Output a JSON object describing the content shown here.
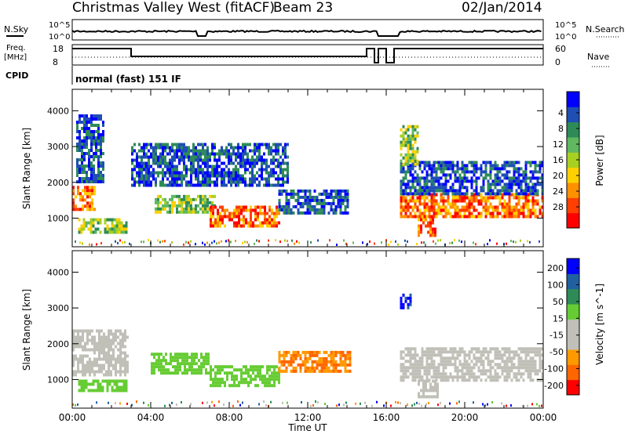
{
  "header": {
    "station": "Christmas Valley West (fitACF)",
    "beam": "Beam 23",
    "date": "02/Jan/2014"
  },
  "aux_labels": {
    "nsky": "N.Sky",
    "nsearch": "N.Search",
    "freq_line1": "Freq.",
    "freq_line2": "[MHz]",
    "nave": "Nave",
    "cpid": "CPID",
    "cpid_value": "normal (fast) 151 IF",
    "noise_ticks_left": [
      "10^5",
      "10^0"
    ],
    "noise_ticks_right": [
      "10^5",
      "10^0"
    ],
    "freq_ticks": [
      "18",
      "8"
    ],
    "nave_ticks": [
      "60",
      "0"
    ]
  },
  "colors": {
    "power_scale": [
      "#0000ff",
      "#1f4fb4",
      "#2e8b57",
      "#5fb85f",
      "#a8d020",
      "#ffd000",
      "#ff9000",
      "#ff4000",
      "#ff0000"
    ],
    "velocity_scale": [
      "#0000ff",
      "#2060a0",
      "#2e8b57",
      "#66cc33",
      "#c0c0b8",
      "#c0c0b8",
      "#ff9900",
      "#ff6600",
      "#ff0000"
    ],
    "ground_scatter": "#c0c0b8"
  },
  "chart_data": [
    {
      "type": "heatmap",
      "title": "",
      "xlabel": "Time UT",
      "ylabel": "Slant Range [km]",
      "xlim": [
        0,
        24
      ],
      "ylim": [
        200,
        4600
      ],
      "x_ticks": [
        "00:00",
        "04:00",
        "08:00",
        "12:00",
        "16:00",
        "20:00",
        "00:00"
      ],
      "y_ticks": [
        "1000",
        "2000",
        "3000",
        "4000"
      ],
      "colorbar": {
        "label": "Power [dB]",
        "ticks": [
          "4",
          "8",
          "12",
          "16",
          "20",
          "24",
          "28"
        ],
        "range": [
          0,
          30
        ]
      },
      "scatter_regions": [
        {
          "t": [
            0.0,
            1.1
          ],
          "r": [
            1250,
            1900
          ],
          "level": "high"
        },
        {
          "t": [
            0.3,
            2.8
          ],
          "r": [
            600,
            1000
          ],
          "level": "medium"
        },
        {
          "t": [
            0.2,
            1.6
          ],
          "r": [
            2000,
            3900
          ],
          "level": "low"
        },
        {
          "t": [
            4.2,
            7.3
          ],
          "r": [
            1200,
            1650
          ],
          "level": "medium"
        },
        {
          "t": [
            7.0,
            10.5
          ],
          "r": [
            800,
            1350
          ],
          "level": "high"
        },
        {
          "t": [
            10.5,
            14.0
          ],
          "r": [
            1150,
            1800
          ],
          "level": "low"
        },
        {
          "t": [
            3.0,
            11.0
          ],
          "r": [
            1900,
            3100
          ],
          "level": "low"
        },
        {
          "t": [
            16.7,
            24.0
          ],
          "r": [
            1000,
            1700
          ],
          "level": "high"
        },
        {
          "t": [
            17.6,
            18.5
          ],
          "r": [
            550,
            1000
          ],
          "level": "high"
        },
        {
          "t": [
            16.7,
            24.0
          ],
          "r": [
            1700,
            2600
          ],
          "level": "low"
        },
        {
          "t": [
            16.7,
            17.6
          ],
          "r": [
            2500,
            3600
          ],
          "level": "medium"
        }
      ]
    },
    {
      "type": "heatmap",
      "title": "",
      "xlabel": "Time UT",
      "ylabel": "Slant Range [km]",
      "xlim": [
        0,
        24
      ],
      "ylim": [
        200,
        4600
      ],
      "x_ticks": [
        "00:00",
        "04:00",
        "08:00",
        "12:00",
        "16:00",
        "20:00",
        "00:00"
      ],
      "y_ticks": [
        "1000",
        "2000",
        "3000",
        "4000"
      ],
      "colorbar": {
        "label": "Velocity [m s^-1]",
        "ticks": [
          "200",
          "100",
          "50",
          "15",
          "-15",
          "-50",
          "-100",
          "-200"
        ],
        "range": [
          -250,
          250
        ]
      },
      "scatter_regions": [
        {
          "t": [
            0.0,
            2.8
          ],
          "r": [
            1100,
            2400
          ],
          "level": "ground"
        },
        {
          "t": [
            0.3,
            2.8
          ],
          "r": [
            650,
            1000
          ],
          "level": "v50"
        },
        {
          "t": [
            4.0,
            7.0
          ],
          "r": [
            1150,
            1750
          ],
          "level": "v50"
        },
        {
          "t": [
            7.0,
            10.5
          ],
          "r": [
            850,
            1400
          ],
          "level": "v50"
        },
        {
          "t": [
            10.5,
            14.2
          ],
          "r": [
            1200,
            1800
          ],
          "level": "vneg50"
        },
        {
          "t": [
            16.7,
            24.0
          ],
          "r": [
            1000,
            1900
          ],
          "level": "ground"
        },
        {
          "t": [
            17.6,
            18.6
          ],
          "r": [
            550,
            1000
          ],
          "level": "ground"
        },
        {
          "t": [
            16.7,
            17.3
          ],
          "r": [
            3000,
            3400
          ],
          "level": "v200"
        }
      ]
    }
  ]
}
